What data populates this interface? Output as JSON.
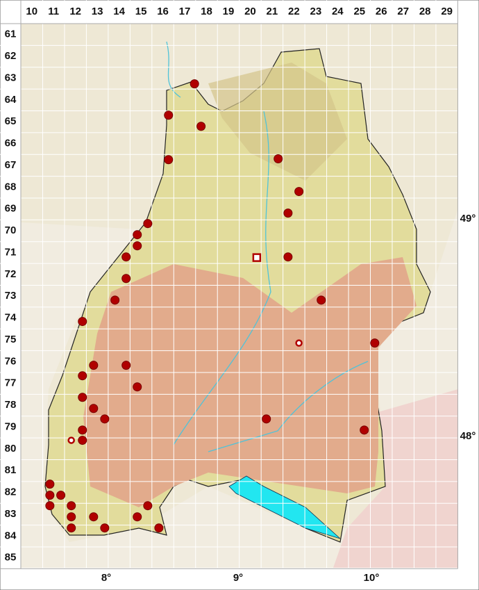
{
  "columns": [
    10,
    11,
    12,
    13,
    14,
    15,
    16,
    17,
    18,
    19,
    20,
    21,
    22,
    23,
    24,
    25,
    26,
    27,
    28,
    29
  ],
  "rows": [
    61,
    62,
    63,
    64,
    65,
    66,
    67,
    68,
    69,
    70,
    71,
    72,
    73,
    74,
    75,
    76,
    77,
    78,
    79,
    80,
    81,
    82,
    83,
    84,
    85
  ],
  "longitude_labels": [
    "8°",
    "9°",
    "10°"
  ],
  "latitude_labels": [
    "49°",
    "48°"
  ],
  "records": [
    {
      "col": 17.45,
      "row": 63.26,
      "symbol": "dot"
    },
    {
      "col": 16.26,
      "row": 64.7,
      "symbol": "dot"
    },
    {
      "col": 17.75,
      "row": 65.21,
      "symbol": "dot"
    },
    {
      "col": 16.26,
      "row": 66.74,
      "symbol": "dot"
    },
    {
      "col": 21.28,
      "row": 66.7,
      "symbol": "dot"
    },
    {
      "col": 22.23,
      "row": 68.2,
      "symbol": "dot"
    },
    {
      "col": 21.73,
      "row": 69.19,
      "symbol": "dot"
    },
    {
      "col": 15.31,
      "row": 69.67,
      "symbol": "dot"
    },
    {
      "col": 14.83,
      "row": 70.18,
      "symbol": "dot"
    },
    {
      "col": 14.83,
      "row": 70.69,
      "symbol": "dot"
    },
    {
      "col": 14.32,
      "row": 71.2,
      "symbol": "dot"
    },
    {
      "col": 21.73,
      "row": 71.2,
      "symbol": "dot"
    },
    {
      "col": 14.32,
      "row": 72.19,
      "symbol": "dot"
    },
    {
      "col": 13.81,
      "row": 73.18,
      "symbol": "dot"
    },
    {
      "col": 23.25,
      "row": 73.18,
      "symbol": "dot"
    },
    {
      "col": 12.32,
      "row": 74.16,
      "symbol": "dot"
    },
    {
      "col": 25.7,
      "row": 75.15,
      "symbol": "dot"
    },
    {
      "col": 14.32,
      "row": 76.17,
      "symbol": "dot"
    },
    {
      "col": 12.83,
      "row": 76.17,
      "symbol": "dot"
    },
    {
      "col": 12.32,
      "row": 76.65,
      "symbol": "dot"
    },
    {
      "col": 14.83,
      "row": 77.16,
      "symbol": "dot"
    },
    {
      "col": 12.32,
      "row": 77.64,
      "symbol": "dot"
    },
    {
      "col": 12.83,
      "row": 78.15,
      "symbol": "dot"
    },
    {
      "col": 13.34,
      "row": 78.63,
      "symbol": "dot"
    },
    {
      "col": 20.74,
      "row": 78.63,
      "symbol": "dot"
    },
    {
      "col": 12.32,
      "row": 79.14,
      "symbol": "dot"
    },
    {
      "col": 25.22,
      "row": 79.14,
      "symbol": "dot"
    },
    {
      "col": 12.32,
      "row": 79.61,
      "symbol": "dot"
    },
    {
      "col": 10.83,
      "row": 81.62,
      "symbol": "dot"
    },
    {
      "col": 10.83,
      "row": 82.13,
      "symbol": "dot"
    },
    {
      "col": 11.33,
      "row": 82.13,
      "symbol": "dot"
    },
    {
      "col": 10.83,
      "row": 82.61,
      "symbol": "dot"
    },
    {
      "col": 11.81,
      "row": 82.61,
      "symbol": "dot"
    },
    {
      "col": 15.31,
      "row": 82.61,
      "symbol": "dot"
    },
    {
      "col": 11.81,
      "row": 83.12,
      "symbol": "dot"
    },
    {
      "col": 12.83,
      "row": 83.12,
      "symbol": "dot"
    },
    {
      "col": 14.83,
      "row": 83.12,
      "symbol": "dot"
    },
    {
      "col": 11.81,
      "row": 83.63,
      "symbol": "dot"
    },
    {
      "col": 13.34,
      "row": 83.63,
      "symbol": "dot"
    },
    {
      "col": 15.82,
      "row": 83.63,
      "symbol": "dot"
    },
    {
      "col": 20.3,
      "row": 71.23,
      "symbol": "square"
    },
    {
      "col": 22.23,
      "row": 75.15,
      "symbol": "ring"
    },
    {
      "col": 11.81,
      "row": 79.61,
      "symbol": "ring"
    }
  ]
}
